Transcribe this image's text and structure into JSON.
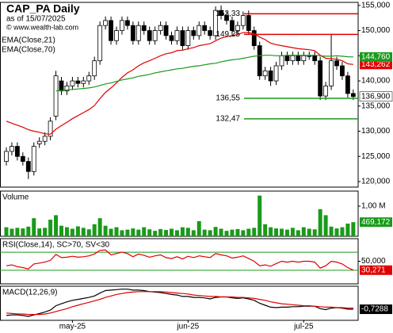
{
  "chart_data": [
    {
      "type": "candlestick",
      "title": "CAP_PA Daily",
      "subtitle": "as of 15/07/2025",
      "source": "© www.wealth-lab.com",
      "categories": [
        null,
        null,
        null,
        null,
        null,
        null,
        null,
        null,
        null,
        null,
        null,
        null,
        "may-25",
        null,
        null,
        null,
        null,
        null,
        null,
        null,
        null,
        null,
        null,
        null,
        null,
        null,
        null,
        null,
        null,
        null,
        null,
        null,
        null,
        "jun-25",
        null,
        null,
        null,
        null,
        null,
        null,
        null,
        null,
        null,
        null,
        null,
        null,
        null,
        null,
        null,
        null,
        null,
        null,
        null,
        null,
        "jul-25",
        null,
        null,
        null,
        null,
        null,
        null,
        null,
        null,
        null
      ],
      "open": [
        124000,
        126000,
        127000,
        125000,
        124000,
        122000,
        127500,
        128000,
        129000,
        133000,
        140000,
        138000,
        139000,
        140000,
        139500,
        140000,
        141000,
        144000,
        151000,
        152000,
        148000,
        150000,
        152000,
        151000,
        148000,
        151000,
        150000,
        148000,
        150000,
        151000,
        149000,
        148000,
        150000,
        147000,
        150000,
        149000,
        151000,
        150000,
        149000,
        154000,
        153000,
        152000,
        150000,
        151000,
        153000,
        150000,
        147000,
        141000,
        142000,
        140000,
        143000,
        145000,
        144000,
        145000,
        144000,
        145000,
        145000,
        144000,
        137000,
        139000,
        144000,
        143000,
        141000,
        137500
      ],
      "high": [
        126800,
        127800,
        127800,
        125800,
        124800,
        127800,
        128800,
        129800,
        132800,
        142000,
        140800,
        139800,
        140800,
        140800,
        140800,
        141800,
        144800,
        151800,
        152800,
        152800,
        150800,
        152800,
        152800,
        151800,
        151800,
        151800,
        150800,
        150800,
        151800,
        151800,
        149800,
        150800,
        150800,
        150800,
        150800,
        151800,
        151800,
        150800,
        154800,
        155000,
        153800,
        152800,
        151800,
        153800,
        154000,
        150800,
        147800,
        142800,
        142800,
        143800,
        145800,
        145800,
        145800,
        145800,
        145800,
        145800,
        145800,
        144800,
        139800,
        149300,
        144800,
        143800,
        141800,
        138300
      ],
      "low": [
        123200,
        125200,
        124200,
        123200,
        120500,
        121200,
        126700,
        127200,
        128200,
        132200,
        137200,
        137200,
        138200,
        138700,
        138700,
        139200,
        140200,
        143200,
        150200,
        147200,
        147200,
        149200,
        150200,
        147200,
        147200,
        149200,
        147200,
        147200,
        149200,
        148200,
        147200,
        147200,
        146200,
        146200,
        148200,
        148200,
        149200,
        148200,
        148200,
        152200,
        151200,
        149200,
        149200,
        150200,
        149200,
        146200,
        140200,
        140200,
        139000,
        139200,
        142200,
        143200,
        143200,
        143200,
        143200,
        144200,
        143200,
        136200,
        136200,
        138200,
        142200,
        140200,
        136700,
        136200
      ],
      "close": [
        126000,
        127000,
        125000,
        124000,
        122000,
        127000,
        128000,
        129000,
        132000,
        141000,
        138000,
        139000,
        140000,
        139500,
        140000,
        141000,
        144000,
        151000,
        152000,
        148000,
        150000,
        152000,
        151000,
        148000,
        151000,
        150000,
        148000,
        150000,
        151000,
        149000,
        148000,
        150000,
        147000,
        150000,
        149000,
        151000,
        150000,
        149000,
        154000,
        153000,
        152000,
        150000,
        151000,
        153000,
        150000,
        147000,
        141000,
        142000,
        140000,
        143000,
        145000,
        144000,
        145000,
        144000,
        145000,
        145000,
        144000,
        137000,
        139000,
        144000,
        143000,
        141000,
        137500,
        136900
      ],
      "close_label": "136,900",
      "up_color": "#ffffff",
      "down_color": "#000000",
      "ylim": [
        118900,
        155600
      ],
      "yticks": [
        {
          "value": 120000,
          "label": "120,000"
        },
        {
          "value": 125000,
          "label": "125,000"
        },
        {
          "value": 130000,
          "label": "130,000"
        },
        {
          "value": 135000,
          "label": "135,000"
        },
        {
          "value": 140000,
          "label": "140,000"
        },
        {
          "value": 145000,
          "label": "145,000"
        },
        {
          "value": 150000,
          "label": "150,000"
        },
        {
          "value": 155000,
          "label": "155,000"
        }
      ],
      "series": [
        {
          "name": "EMA(Close,21)",
          "color": "#e00000",
          "last_label": "143,262",
          "values": [
            132000,
            131600,
            131200,
            130800,
            130300,
            130000,
            129800,
            129500,
            129400,
            130400,
            131100,
            131800,
            132500,
            133100,
            133700,
            134300,
            135100,
            136500,
            137700,
            138600,
            139600,
            140700,
            141600,
            142200,
            143000,
            143600,
            144000,
            144500,
            145000,
            145400,
            145600,
            146000,
            146100,
            146400,
            146600,
            147000,
            147200,
            147400,
            148000,
            148500,
            148800,
            149000,
            149200,
            149600,
            149600,
            149400,
            148700,
            148200,
            147500,
            147200,
            147000,
            146800,
            146600,
            146400,
            146300,
            146200,
            146000,
            145100,
            144500,
            144400,
            144300,
            144000,
            143400,
            143262
          ]
        },
        {
          "name": "EMA(Close,70)",
          "color": "#1a9a1a",
          "last_label": "144,760",
          "values": [
            null,
            null,
            null,
            null,
            null,
            null,
            null,
            null,
            null,
            138000,
            138100,
            138200,
            138300,
            138400,
            138500,
            138600,
            138800,
            139100,
            139400,
            139600,
            139900,
            140200,
            140400,
            140600,
            140900,
            141100,
            141300,
            141600,
            141800,
            142000,
            142200,
            142400,
            142500,
            142700,
            142900,
            143000,
            143200,
            143400,
            143500,
            143800,
            144000,
            144200,
            144300,
            144500,
            144700,
            144900,
            145000,
            145100,
            145100,
            145000,
            145000,
            145100,
            145100,
            145100,
            145100,
            145100,
            145100,
            145000,
            144900,
            144900,
            145000,
            144900,
            144800,
            144760
          ]
        }
      ],
      "levels": [
        {
          "value": 153330,
          "label": "153,33",
          "color": "#e00000"
        },
        {
          "value": 149250,
          "label": "149,25",
          "color": "#e00000"
        },
        {
          "value": 136550,
          "label": "136,55",
          "color": "#1a9a1a"
        },
        {
          "value": 132470,
          "label": "132,47",
          "color": "#1a9a1a"
        }
      ]
    },
    {
      "type": "bar",
      "title": "Volume",
      "color": "#1a9a1a",
      "last_label": "469,172",
      "values": [
        300000,
        250000,
        280000,
        260000,
        320000,
        600000,
        260000,
        280000,
        550000,
        700000,
        350000,
        300000,
        250000,
        330000,
        280000,
        230000,
        400000,
        600000,
        350000,
        250000,
        300000,
        200000,
        220000,
        260000,
        220000,
        300000,
        230000,
        180000,
        240000,
        210000,
        250000,
        200000,
        300000,
        280000,
        200000,
        500000,
        220000,
        200000,
        310000,
        250000,
        180000,
        220000,
        240000,
        200000,
        250000,
        280000,
        1350000,
        400000,
        300000,
        260000,
        250000,
        220000,
        280000,
        200000,
        300000,
        250000,
        230000,
        900000,
        700000,
        320000,
        260000,
        300000,
        420000,
        469172
      ],
      "ylim": [
        0,
        1500000
      ],
      "yticks": [
        {
          "value": 1000000,
          "label": "1,00 M"
        }
      ]
    },
    {
      "type": "line",
      "title": "RSI(Close,14), SC>70, SV<30",
      "series": [
        {
          "color": "#e00000",
          "last_label": "30,271",
          "values": [
            40,
            42,
            38,
            36,
            33,
            44,
            46,
            48,
            52,
            65,
            58,
            59,
            61,
            59,
            60,
            62,
            66,
            74,
            75,
            64,
            67,
            70,
            67,
            60,
            66,
            63,
            59,
            62,
            64,
            58,
            56,
            60,
            55,
            61,
            58,
            62,
            60,
            58,
            67,
            64,
            62,
            57,
            59,
            62,
            56,
            50,
            40,
            42,
            39,
            45,
            50,
            48,
            50,
            48,
            50,
            50,
            48,
            35,
            40,
            50,
            48,
            44,
            36,
            30.271
          ]
        }
      ],
      "bands": [
        70,
        30
      ],
      "band_color": "#1a9a1a",
      "ylim": [
        0,
        100
      ],
      "yticks": [
        {
          "value": 50,
          "label": "50,000"
        }
      ]
    },
    {
      "type": "line",
      "title": "MACD(12,26,9)",
      "series": [
        {
          "color": "#000000",
          "last_label": "-0,7288",
          "values": [
            -2,
            -1.9,
            -1.9,
            -2,
            -2.2,
            -1.9,
            -1.6,
            -1.3,
            -0.9,
            0,
            0.4,
            0.8,
            1.1,
            1.3,
            1.5,
            1.7,
            2,
            2.6,
            3.1,
            3.2,
            3.3,
            3.4,
            3.4,
            3.2,
            3.2,
            3.1,
            2.9,
            2.8,
            2.7,
            2.5,
            2.3,
            2.2,
            1.9,
            1.9,
            1.7,
            1.7,
            1.6,
            1.4,
            1.7,
            1.8,
            1.8,
            1.6,
            1.5,
            1.6,
            1.4,
            1.1,
            0.5,
            0.1,
            -0.3,
            -0.4,
            -0.3,
            -0.3,
            -0.2,
            -0.2,
            -0.1,
            -0.1,
            -0.1,
            -0.6,
            -0.8,
            -0.5,
            -0.4,
            -0.5,
            -0.7,
            -0.7288
          ]
        },
        {
          "color": "#e00000",
          "values": [
            -1.5,
            -1.6,
            -1.7,
            -1.7,
            -1.8,
            -1.8,
            -1.8,
            -1.7,
            -1.5,
            -1.2,
            -0.9,
            -0.6,
            -0.2,
            0.1,
            0.4,
            0.7,
            1,
            1.3,
            1.7,
            2,
            2.3,
            2.5,
            2.7,
            2.8,
            2.9,
            2.9,
            2.9,
            2.9,
            2.9,
            2.8,
            2.7,
            2.6,
            2.5,
            2.4,
            2.2,
            2.1,
            2,
            1.9,
            1.9,
            1.8,
            1.8,
            1.8,
            1.7,
            1.7,
            1.6,
            1.5,
            1.3,
            1.1,
            0.8,
            0.6,
            0.4,
            0.3,
            0.2,
            0.1,
            0,
            0,
            -0.1,
            -0.2,
            -0.3,
            -0.3,
            -0.4,
            -0.4,
            -0.5,
            -0.5
          ]
        }
      ],
      "ylim": [
        -3,
        4
      ]
    }
  ]
}
